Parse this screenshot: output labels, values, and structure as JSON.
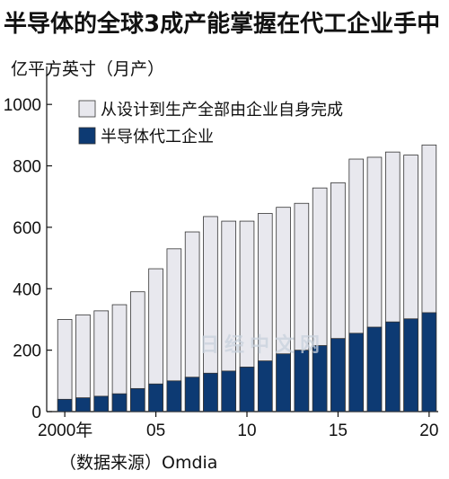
{
  "title": "半导体的全球3成产能掌握在代工企业手中",
  "unit_label": "亿平方英寸（月产）",
  "source": "（数据来源）Omdia",
  "watermark": "日经中文网",
  "colors": {
    "total": "#e8e8ee",
    "foundry": "#0d3a73",
    "outline": "#333333"
  },
  "chart_data": {
    "type": "bar",
    "stacked": false,
    "overlapping": true,
    "categories": [
      "2000",
      "2001",
      "2002",
      "2003",
      "2004",
      "2005",
      "2006",
      "2007",
      "2008",
      "2009",
      "2010",
      "2011",
      "2012",
      "2013",
      "2014",
      "2015",
      "2016",
      "2017",
      "2018",
      "2019",
      "2020"
    ],
    "x_tick_labels": [
      {
        "index": 0,
        "label": "2000年"
      },
      {
        "index": 5,
        "label": "05"
      },
      {
        "index": 10,
        "label": "10"
      },
      {
        "index": 15,
        "label": "15"
      },
      {
        "index": 20,
        "label": "20"
      }
    ],
    "series": [
      {
        "name": "从设计到生产全部由企业自身完成",
        "values": [
          300,
          315,
          328,
          348,
          390,
          465,
          530,
          585,
          635,
          620,
          620,
          645,
          665,
          678,
          728,
          745,
          822,
          828,
          845,
          835,
          868
        ]
      },
      {
        "name": "半导体代工企业",
        "values": [
          40,
          45,
          50,
          58,
          75,
          90,
          100,
          112,
          125,
          132,
          145,
          165,
          188,
          200,
          215,
          238,
          255,
          275,
          292,
          302,
          322
        ]
      }
    ],
    "ylim": [
      0,
      1100
    ],
    "yticks": [
      0,
      200,
      400,
      600,
      800,
      1000
    ],
    "legend_position": "top-left",
    "grid": false
  }
}
